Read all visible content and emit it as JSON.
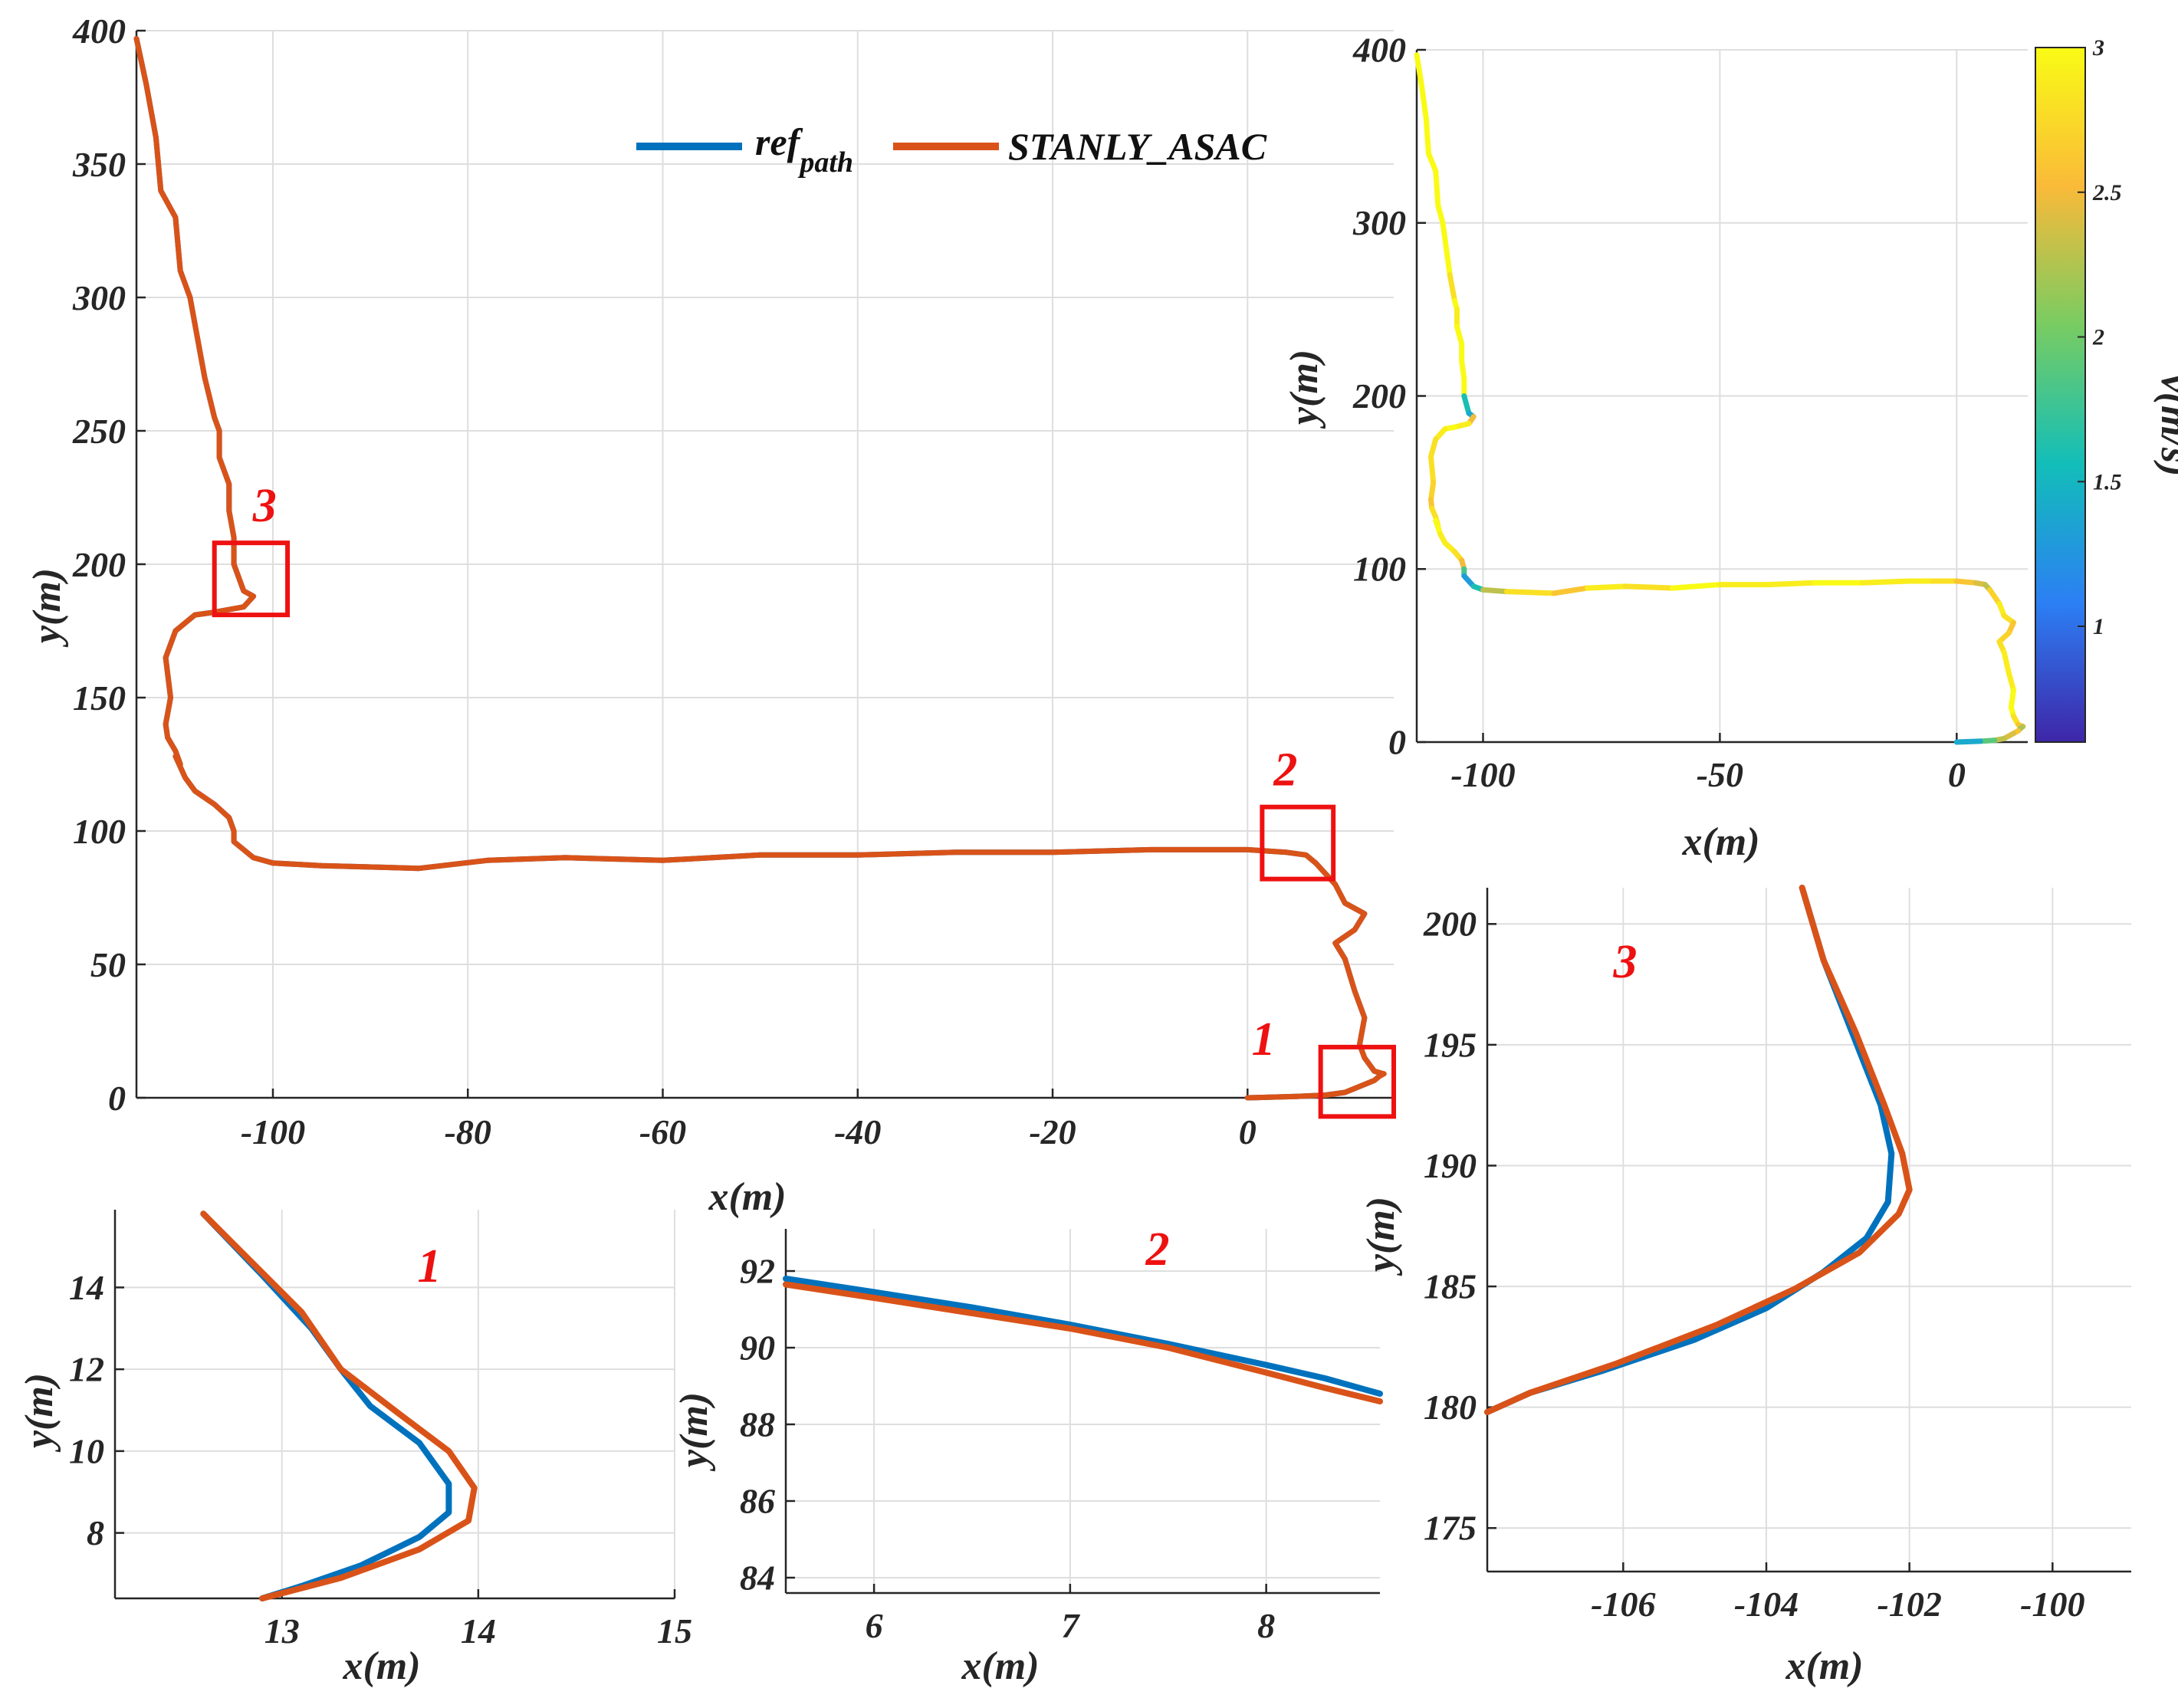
{
  "colors": {
    "ref_path": "#0072BD",
    "stanly_asac": "#D95319",
    "zoom_box": "#EE1111",
    "grid": "#DEDEDE",
    "axis": "#262626"
  },
  "chart_data": [
    {
      "id": "main",
      "type": "line",
      "xlabel": "x(m)",
      "ylabel": "y(m)",
      "xlim": [
        -114,
        15
      ],
      "ylim": [
        0,
        400
      ],
      "xticks": [
        -100,
        -80,
        -60,
        -40,
        -20,
        0
      ],
      "yticks": [
        0,
        50,
        100,
        150,
        200,
        250,
        300,
        350,
        400
      ],
      "grid": true,
      "legend": {
        "placement": "top-center",
        "entries": [
          {
            "main": "ref",
            "sub": "path"
          },
          {
            "main": "STANLY_ASAC"
          }
        ]
      },
      "annotations": [
        {
          "label": "1",
          "box_x": [
            7.5,
            15
          ],
          "box_y": [
            -7,
            19
          ]
        },
        {
          "label": "2",
          "box_x": [
            1.5,
            8.8
          ],
          "box_y": [
            82,
            109
          ]
        },
        {
          "label": "3",
          "box_x": [
            -106,
            -98.5
          ],
          "box_y": [
            181,
            208
          ]
        }
      ],
      "series": [
        {
          "name": "ref_path",
          "x": [
            -114,
            -113,
            -112,
            -111.5,
            -110,
            -109.5,
            -108.5,
            -107.5,
            -107,
            -106,
            -105.5,
            -105.5,
            -104.5,
            -104.5,
            -104,
            -104,
            -103,
            -102,
            -103,
            -106,
            -108,
            -110,
            -111,
            -110.5,
            -111,
            -110.8,
            -110,
            -109.5,
            -110,
            -109,
            -108,
            -106,
            -104.5,
            -104,
            -104,
            -102,
            -100,
            -95,
            -85,
            -78,
            -70,
            -60,
            -50,
            -40,
            -30,
            -20,
            -10,
            -5,
            0,
            4,
            6,
            7,
            9,
            10,
            12,
            11,
            9,
            10,
            11,
            12,
            11.5,
            12,
            13,
            13.8,
            13.5,
            13,
            12,
            10,
            8,
            5,
            0
          ],
          "y": [
            397,
            380,
            360,
            340,
            330,
            310,
            300,
            280,
            270,
            255,
            250,
            240,
            230,
            220,
            210,
            200,
            190,
            188,
            184,
            182,
            181,
            175,
            165,
            150,
            140,
            135,
            130,
            125,
            128,
            120,
            115,
            110,
            105,
            100,
            96,
            90,
            88,
            87,
            86,
            89,
            90,
            89,
            91,
            91,
            92,
            92,
            93,
            93,
            93,
            92,
            91,
            88,
            80,
            73,
            69,
            63,
            58,
            52,
            40,
            30,
            20,
            15,
            10,
            9,
            8,
            6.5,
            5,
            2,
            1,
            0.5,
            0
          ]
        },
        {
          "name": "STANLY_ASAC",
          "x": [
            -114,
            -113,
            -112,
            -111.5,
            -110,
            -109.5,
            -108.5,
            -107.5,
            -107,
            -106,
            -105.5,
            -105.5,
            -104.5,
            -104.5,
            -104,
            -104,
            -103,
            -102,
            -103,
            -106,
            -108,
            -110,
            -111,
            -110.5,
            -111,
            -110.8,
            -110,
            -109.5,
            -110,
            -109,
            -108,
            -106,
            -104.5,
            -104,
            -104,
            -102,
            -100,
            -95,
            -85,
            -78,
            -70,
            -60,
            -50,
            -40,
            -30,
            -20,
            -10,
            -5,
            0,
            4,
            6,
            7,
            9,
            10,
            12,
            11,
            9,
            10,
            11,
            12,
            11.5,
            12,
            13,
            14,
            13.5,
            13,
            12,
            10,
            8,
            5,
            0
          ],
          "y": [
            397,
            380,
            360,
            340,
            330,
            310,
            300,
            280,
            270,
            255,
            250,
            240,
            230,
            220,
            210,
            200,
            190,
            188,
            184,
            182,
            181,
            175,
            165,
            150,
            140,
            135,
            130,
            125,
            128,
            120,
            115,
            110,
            105,
            100,
            96,
            90,
            88,
            87,
            86,
            89,
            90,
            89,
            91,
            91,
            92,
            92,
            93,
            93,
            93,
            92,
            91,
            88,
            80,
            73,
            69,
            63,
            58,
            52,
            40,
            30,
            20,
            15,
            10,
            9,
            8,
            6.5,
            5,
            2,
            1,
            0.5,
            0
          ]
        }
      ]
    },
    {
      "id": "speed",
      "type": "line",
      "xlabel": "x(m)",
      "ylabel": "y(m)",
      "xlim": [
        -114,
        15
      ],
      "ylim": [
        0,
        400
      ],
      "xticks": [
        -100,
        -50,
        0
      ],
      "yticks": [
        0,
        100,
        200,
        300,
        400
      ],
      "grid": true,
      "colorbar": {
        "label": "v(m/s)",
        "ticks": [
          "1",
          "1.5",
          "2",
          "2.5",
          "3"
        ],
        "range": [
          0.6,
          3.0
        ]
      },
      "series": [
        {
          "name": "speed_colored_path",
          "x": [
            -114,
            -113,
            -112,
            -111.5,
            -110,
            -109.5,
            -108.5,
            -107.5,
            -107,
            -106,
            -105.5,
            -105.5,
            -104.5,
            -104.5,
            -104,
            -104,
            -103,
            -102,
            -103,
            -106,
            -108,
            -110,
            -111,
            -110.5,
            -111,
            -110.8,
            -110,
            -109.5,
            -110,
            -109,
            -108,
            -106,
            -104.5,
            -104,
            -104,
            -102,
            -100,
            -95,
            -85,
            -78,
            -70,
            -60,
            -50,
            -40,
            -30,
            -20,
            -10,
            -5,
            0,
            4,
            6,
            7,
            9,
            10,
            12,
            11,
            9,
            10,
            11,
            12,
            11.5,
            12,
            13,
            14,
            13.5,
            13,
            12,
            10,
            8,
            5,
            0
          ],
          "y": [
            397,
            380,
            360,
            340,
            330,
            310,
            300,
            280,
            270,
            255,
            250,
            240,
            230,
            220,
            210,
            200,
            190,
            188,
            184,
            182,
            181,
            175,
            165,
            150,
            140,
            135,
            130,
            125,
            128,
            120,
            115,
            110,
            105,
            100,
            96,
            90,
            88,
            87,
            86,
            89,
            90,
            89,
            91,
            91,
            92,
            92,
            93,
            93,
            93,
            92,
            91,
            88,
            80,
            73,
            69,
            63,
            58,
            52,
            40,
            30,
            20,
            15,
            10,
            9,
            8,
            6.5,
            5,
            2,
            1,
            0.5,
            0
          ],
          "speed": [
            3,
            3,
            3,
            3,
            3,
            3,
            3,
            3,
            3,
            2.8,
            3,
            2.9,
            3,
            3,
            3,
            3,
            1.6,
            1.4,
            2.5,
            2.9,
            3,
            2.9,
            2.8,
            2.8,
            2.7,
            2.6,
            2.8,
            2.8,
            2.9,
            3,
            2.9,
            2.9,
            2.8,
            2.5,
            1.8,
            1.3,
            1.6,
            2.3,
            2.8,
            2.6,
            2.9,
            2.8,
            3,
            2.9,
            2.9,
            3,
            2.9,
            2.9,
            2.8,
            2.6,
            2.4,
            2.3,
            2.7,
            2.9,
            2.8,
            2.6,
            2.7,
            2.8,
            2.9,
            2.9,
            3,
            3,
            2.8,
            2.6,
            2.3,
            2.2,
            2.6,
            2.4,
            2.3,
            1.9,
            1.4
          ]
        }
      ]
    },
    {
      "id": "zoom1",
      "type": "line",
      "title": "1",
      "xlabel": "x(m)",
      "ylabel": "y(m)",
      "xlim": [
        12.15,
        15
      ],
      "ylim": [
        6.4,
        15.9
      ],
      "xticks": [
        13,
        14,
        15
      ],
      "yticks": [
        8,
        10,
        12,
        14
      ],
      "grid": true,
      "series": [
        {
          "name": "ref_path",
          "x": [
            12.6,
            12.9,
            13.15,
            13.3,
            13.45,
            13.7,
            13.85,
            13.85,
            13.7,
            13.4,
            13.1,
            12.9
          ],
          "y": [
            15.8,
            14.3,
            13.0,
            12.0,
            11.1,
            10.2,
            9.2,
            8.5,
            7.9,
            7.2,
            6.7,
            6.4
          ]
        },
        {
          "name": "STANLY_ASAC",
          "x": [
            12.6,
            12.85,
            13.1,
            13.3,
            13.6,
            13.85,
            13.98,
            13.95,
            13.7,
            13.3,
            12.9
          ],
          "y": [
            15.8,
            14.6,
            13.4,
            12.0,
            10.9,
            10.0,
            9.1,
            8.3,
            7.6,
            6.9,
            6.4
          ]
        }
      ]
    },
    {
      "id": "zoom2",
      "type": "line",
      "title": "2",
      "xlabel": "x(m)",
      "ylabel": "y(m)",
      "xlim": [
        5.55,
        8.58
      ],
      "ylim": [
        83.6,
        93.1
      ],
      "xticks": [
        6,
        7,
        8
      ],
      "yticks": [
        84,
        86,
        88,
        90,
        92
      ],
      "grid": true,
      "series": [
        {
          "name": "ref_path",
          "x": [
            5.55,
            6,
            6.5,
            7,
            7.5,
            8,
            8.3,
            8.58
          ],
          "y": [
            91.8,
            91.45,
            91.05,
            90.6,
            90.1,
            89.55,
            89.2,
            88.8
          ]
        },
        {
          "name": "STANLY_ASAC",
          "x": [
            5.55,
            6,
            6.5,
            7,
            7.5,
            8,
            8.3,
            8.58
          ],
          "y": [
            91.65,
            91.3,
            90.9,
            90.5,
            90.0,
            89.35,
            88.95,
            88.6
          ]
        }
      ]
    },
    {
      "id": "zoom3",
      "type": "line",
      "title": "3",
      "xlabel": "x(m)",
      "ylabel": "y(m)",
      "xlim": [
        -107.9,
        -98.9
      ],
      "ylim": [
        173.2,
        201.5
      ],
      "xticks": [
        -106,
        -104,
        -102,
        -100
      ],
      "yticks": [
        175,
        180,
        185,
        190,
        195,
        200
      ],
      "grid": true,
      "series": [
        {
          "name": "ref_path",
          "x": [
            -103.5,
            -103.2,
            -102.8,
            -102.4,
            -102.25,
            -102.3,
            -102.6,
            -103.2,
            -104,
            -105,
            -106.3,
            -107.3,
            -107.9
          ],
          "y": [
            201.5,
            198.5,
            195.5,
            192.5,
            190.5,
            188.5,
            187,
            185.6,
            184.1,
            182.8,
            181.5,
            180.6,
            179.8
          ]
        },
        {
          "name": "STANLY_ASAC",
          "x": [
            -103.5,
            -103.2,
            -102.75,
            -102.35,
            -102.1,
            -102.0,
            -102.15,
            -102.7,
            -103.6,
            -104.7,
            -106.1,
            -107.3,
            -107.9
          ],
          "y": [
            201.5,
            198.5,
            195.5,
            192.5,
            190.5,
            189,
            188,
            186.4,
            184.9,
            183.4,
            181.8,
            180.6,
            179.8
          ]
        }
      ]
    }
  ]
}
